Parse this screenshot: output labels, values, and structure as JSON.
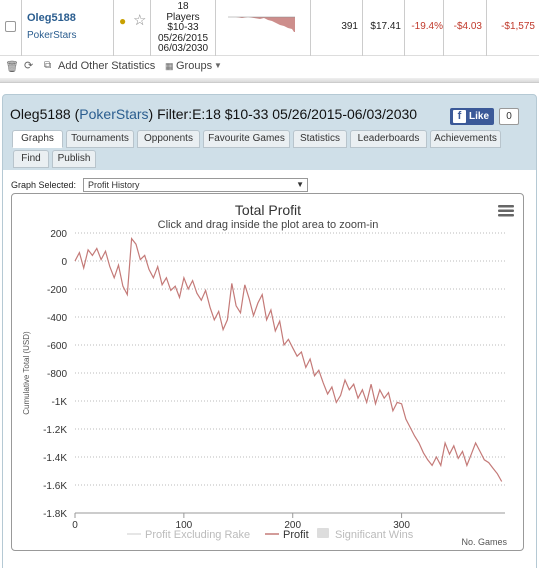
{
  "row": {
    "player": "Oleg5188",
    "site": "PokerStars",
    "game_lines": [
      "18",
      "Players",
      "$10-33",
      "05/26/2015",
      "06/03/2030"
    ],
    "hands": "391",
    "avg": "$17.41",
    "roi": "-19.4%",
    "c1": "-$4.03",
    "c2": "-$1,575"
  },
  "toolbar": {
    "add_stats": "Add Other Statistics",
    "groups": "Groups"
  },
  "panel": {
    "player": "Oleg5188",
    "open_paren": " (",
    "site": "PokerStars",
    "filter": ") Filter:E:18 $10-33 05/26/2015-06/03/2030",
    "like_label": "Like",
    "like_count": "0",
    "tabs": [
      "Graphs",
      "Tournaments",
      "Opponents",
      "Favourite Games",
      "Statistics",
      "Leaderboards",
      "Achievements",
      "Find",
      "Publish"
    ],
    "graph_selected_label": "Graph Selected:",
    "graph_selected_value": "Profit History"
  },
  "colors": {
    "profit_line": "#c47a78",
    "link": "#2a5d8f",
    "negative": "#c0392b",
    "facebook": "#3b5998"
  },
  "chart_data": {
    "type": "line",
    "title": "Total Profit",
    "subtitle": "Click and drag inside the plot area to zoom-in",
    "xlabel": "No. Games",
    "ylabel": "Cumulative Total (USD)",
    "xlim": [
      0,
      395
    ],
    "ylim": [
      -1800,
      200
    ],
    "x_ticks": [
      0,
      100,
      200,
      300
    ],
    "x_tick_labels": [
      "0",
      "100",
      "200",
      "300"
    ],
    "y_ticks": [
      200,
      0,
      -200,
      -400,
      -600,
      -800,
      -1000,
      -1200,
      -1400,
      -1600,
      -1800
    ],
    "y_tick_labels": [
      "200",
      "0",
      "-200",
      "-400",
      "-600",
      "-800",
      "-1K",
      "-1.2K",
      "-1.4K",
      "-1.6K",
      "-1.8K"
    ],
    "grid": true,
    "legend": [
      "Profit Excluding Rake",
      "Profit",
      "Significant Wins"
    ],
    "legend_placement": "bottom",
    "series": [
      {
        "name": "Profit",
        "x": [
          0,
          4,
          8,
          12,
          16,
          20,
          24,
          28,
          32,
          36,
          40,
          44,
          48,
          52,
          56,
          60,
          64,
          68,
          72,
          76,
          80,
          84,
          88,
          92,
          96,
          100,
          104,
          108,
          112,
          116,
          120,
          124,
          128,
          132,
          136,
          140,
          144,
          148,
          152,
          156,
          160,
          164,
          168,
          172,
          176,
          180,
          184,
          188,
          192,
          196,
          200,
          204,
          208,
          212,
          216,
          220,
          224,
          228,
          232,
          236,
          240,
          244,
          248,
          252,
          256,
          260,
          264,
          268,
          272,
          276,
          280,
          284,
          288,
          292,
          296,
          300,
          304,
          308,
          312,
          316,
          320,
          324,
          328,
          332,
          336,
          340,
          344,
          348,
          352,
          356,
          360,
          364,
          368,
          372,
          376,
          380,
          384,
          388,
          392
        ],
        "y": [
          0,
          60,
          -50,
          80,
          40,
          90,
          10,
          70,
          -40,
          -120,
          -30,
          -180,
          -240,
          160,
          120,
          10,
          40,
          -60,
          -120,
          -40,
          -170,
          -120,
          -210,
          -180,
          -260,
          -120,
          -200,
          -140,
          -230,
          -280,
          -210,
          -330,
          -420,
          -360,
          -490,
          -420,
          -160,
          -320,
          -370,
          -170,
          -270,
          -390,
          -300,
          -240,
          -420,
          -350,
          -500,
          -430,
          -600,
          -560,
          -620,
          -680,
          -650,
          -760,
          -700,
          -820,
          -780,
          -870,
          -950,
          -900,
          -1010,
          -960,
          -850,
          -920,
          -880,
          -980,
          -920,
          -1010,
          -880,
          -1020,
          -920,
          -980,
          -940,
          -1070,
          -1010,
          -1020,
          -1130,
          -1190,
          -1250,
          -1300,
          -1370,
          -1420,
          -1460,
          -1400,
          -1460,
          -1300,
          -1380,
          -1320,
          -1410,
          -1360,
          -1460,
          -1380,
          -1300,
          -1360,
          -1420,
          -1440,
          -1480,
          -1520,
          -1575
        ]
      }
    ]
  }
}
